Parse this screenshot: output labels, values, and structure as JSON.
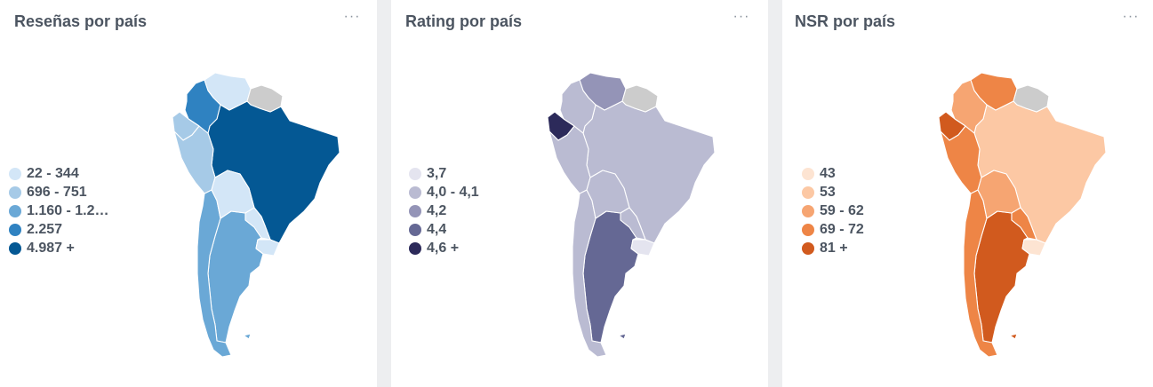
{
  "cards": [
    {
      "title": "Reseñas por país",
      "menu": "···",
      "legend": [
        {
          "label": "22 - 344",
          "color": "#d3e6f7"
        },
        {
          "label": "696 - 751",
          "color": "#a6cae7"
        },
        {
          "label": "1.160 - 1.2…",
          "color": "#6aa8d6"
        },
        {
          "label": "2.257",
          "color": "#2f82c1"
        },
        {
          "label": "4.987 +",
          "color": "#045894"
        }
      ],
      "countries": {
        "colombia": "#2f82c1",
        "venezuela": "#d3e6f7",
        "ecuador": "#a6cae7",
        "peru": "#a6cae7",
        "bolivia": "#d3e6f7",
        "brazil": "#045894",
        "paraguay": "#d3e6f7",
        "uruguay": "#d3e6f7",
        "argentina": "#6aa8d6",
        "chile": "#6aa8d6",
        "guianas": "#cccccc"
      }
    },
    {
      "title": "Rating por país",
      "menu": "···",
      "legend": [
        {
          "label": "3,7",
          "color": "#e4e4ef"
        },
        {
          "label": "4,0 - 4,1",
          "color": "#babbd2"
        },
        {
          "label": "4,2",
          "color": "#9494b7"
        },
        {
          "label": "4,4",
          "color": "#656894"
        },
        {
          "label": "4,6 +",
          "color": "#2c2a5a"
        }
      ],
      "countries": {
        "colombia": "#babbd2",
        "venezuela": "#9494b7",
        "ecuador": "#2c2a5a",
        "peru": "#babbd2",
        "bolivia": "#babbd2",
        "brazil": "#babbd2",
        "paraguay": "#babbd2",
        "uruguay": "#e4e4ef",
        "argentina": "#656894",
        "chile": "#babbd2",
        "guianas": "#cccccc"
      }
    },
    {
      "title": "NSR por país",
      "menu": "···",
      "legend": [
        {
          "label": "43",
          "color": "#fde4d2"
        },
        {
          "label": "53",
          "color": "#fcc8a4"
        },
        {
          "label": "59 - 62",
          "color": "#f6a572"
        },
        {
          "label": "69 - 72",
          "color": "#ee8546"
        },
        {
          "label": "81 +",
          "color": "#d15a1e"
        }
      ],
      "countries": {
        "colombia": "#f6a572",
        "venezuela": "#ee8546",
        "ecuador": "#d15a1e",
        "peru": "#ee8546",
        "bolivia": "#f6a572",
        "brazil": "#fcc8a4",
        "paraguay": "#ee8546",
        "uruguay": "#fde4d2",
        "argentina": "#d15a1e",
        "chile": "#ee8546",
        "guianas": "#cccccc"
      }
    }
  ]
}
